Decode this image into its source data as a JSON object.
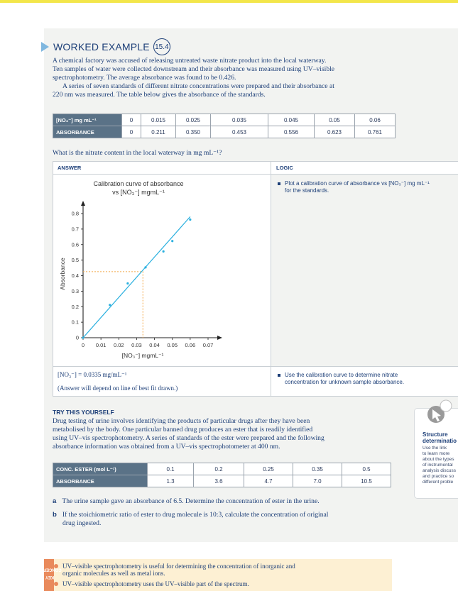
{
  "header": {
    "title": "WORKED EXAMPLE",
    "number": "15.4"
  },
  "intro": {
    "p1": [
      "A chemical factory was accused of releasing untreated waste nitrate product into the local waterway.",
      "Ten samples of water were collected downstream and their absorbance was measured using UV–visible",
      "spectrophotometry. The average absorbance was found to be 0.426."
    ],
    "p2": [
      "A series of seven standards of different nitrate concentrations were prepared and their absorbance at",
      "220 nm was measured. The table below gives the absorbance of the standards."
    ]
  },
  "standards_table": {
    "row1_label": "[NO₃⁻] mg mL⁻¹",
    "row1": [
      "0",
      "0.015",
      "0.025",
      "0.035",
      "0.045",
      "0.05",
      "0.06"
    ],
    "row2_label": "ABSORBANCE",
    "row2": [
      "0",
      "0.211",
      "0.350",
      "0.453",
      "0.556",
      "0.623",
      "0.761"
    ]
  },
  "question": "What is the nitrate content in the local waterway in mg mL⁻¹?",
  "answer_header": "ANSWER",
  "logic_header": "LOGIC",
  "logic": {
    "l1": [
      "Plot a calibration curve of absorbance vs [NO₃⁻] mg mL⁻¹",
      "for the standards."
    ],
    "l2": [
      "Use the calibration curve to determine nitrate",
      "concentration for unknown sample absorbance."
    ]
  },
  "answer": {
    "result": "[NO₃⁻] = 0.0335 mg/mL⁻¹",
    "note": "(Answer will depend on line of best fit drawn.)"
  },
  "chart_data": {
    "type": "scatter",
    "title": "Calibration curve of absorbance vs [NO₃⁻] mgmL⁻¹",
    "xlabel": "[NO₃⁻] mgmL⁻¹",
    "ylabel": "Absorbance",
    "xlim": [
      0,
      0.07
    ],
    "ylim": [
      0,
      0.8
    ],
    "xticks": [
      "0",
      "0.01",
      "0.02",
      "0.03",
      "0.04",
      "0.05",
      "0.06",
      "0.07"
    ],
    "yticks": [
      "0",
      "0.1",
      "0.2",
      "0.3",
      "0.4",
      "0.5",
      "0.6",
      "0.7",
      "0.8"
    ],
    "points": [
      {
        "x": 0,
        "y": 0
      },
      {
        "x": 0.015,
        "y": 0.211
      },
      {
        "x": 0.025,
        "y": 0.35
      },
      {
        "x": 0.035,
        "y": 0.453
      },
      {
        "x": 0.045,
        "y": 0.556
      },
      {
        "x": 0.05,
        "y": 0.623
      },
      {
        "x": 0.06,
        "y": 0.761
      }
    ],
    "fit_line": [
      {
        "x": 0,
        "y": 0
      },
      {
        "x": 0.06,
        "y": 0.78
      }
    ],
    "reading": {
      "x": 0.0335,
      "y": 0.426
    },
    "grid": false,
    "colors": {
      "line": "#2bb0df",
      "points": "#2bb0df",
      "reading": "#f2a94a",
      "axis": "#222222"
    }
  },
  "try": {
    "heading": "TRY THIS YOURSELF",
    "lines": [
      "Drug testing of urine involves identifying the products of particular drugs after they have been",
      "metabolised by the body. One particular banned drug produces an ester that is readily identified",
      "using UV–vis spectrophotometry. A series of standards of the ester were prepared and the following",
      "absorbance information was obtained from a UV–vis spectrophotometer at 400 nm."
    ],
    "table": {
      "row1_label": "CONC. ESTER (mol L⁻¹)",
      "row1": [
        "0.1",
        "0.2",
        "0.25",
        "0.35",
        "0.5"
      ],
      "row2_label": "ABSORBANCE",
      "row2": [
        "1.3",
        "3.6",
        "4.7",
        "7.0",
        "10.5"
      ]
    },
    "qa": "The urine sample gave an absorbance of 6.5. Determine the concentration of ester in the urine.",
    "qb1": "If the stoichiometric ratio of ester to drug molecule is 10:3, calculate the concentration of original",
    "qb2": "drug ingested.",
    "label_a": "a",
    "label_b": "b"
  },
  "sidecard": {
    "title1": "Structure",
    "title2": "determinatio",
    "text": [
      "Use the link",
      "to learn more",
      "about the types",
      "of instrumental",
      "analysis discuss",
      "and practice so",
      "different proble"
    ],
    "icon": "cursor-click-icon"
  },
  "key_concepts": {
    "tab1": "KEY",
    "tab2": "CONCEPTS",
    "items": [
      "UV–visible spectrophotometry is useful for determining the concentration of inorganic and",
      "organic molecules as well as metal ions.",
      "UV–visible spectrophotometry uses the UV–visible part of the spectrum."
    ]
  }
}
